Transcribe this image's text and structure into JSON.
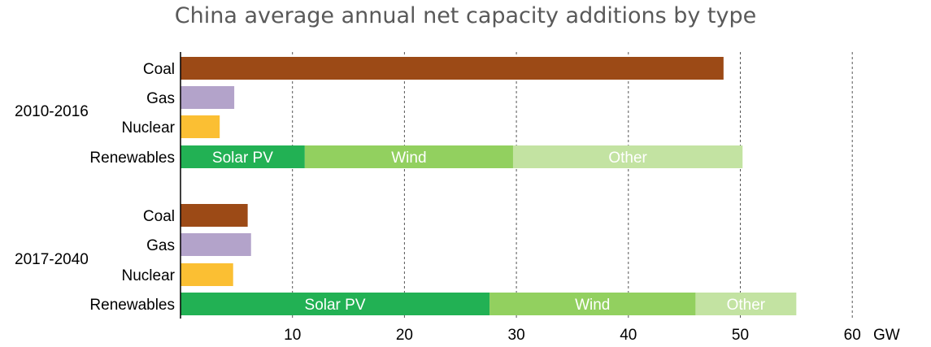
{
  "chart_data": {
    "type": "bar",
    "orientation": "horizontal",
    "stacked": true,
    "title": "China average annual net capacity additions by type",
    "unit": "GW",
    "xlim": [
      0,
      60
    ],
    "x_ticks": [
      10,
      20,
      30,
      40,
      50,
      60
    ],
    "grid": "vertical dashed",
    "groups": [
      {
        "label": "2010-2016",
        "bars": [
          {
            "label": "Coal",
            "segments": [
              {
                "name": "",
                "value": 48.5,
                "color": "#9C4A16"
              }
            ]
          },
          {
            "label": "Gas",
            "segments": [
              {
                "name": "",
                "value": 4.8,
                "color": "#B3A3CA"
              }
            ]
          },
          {
            "label": "Nuclear",
            "segments": [
              {
                "name": "",
                "value": 3.5,
                "color": "#FBBF33"
              }
            ]
          },
          {
            "label": "Renewables",
            "segments": [
              {
                "name": "Solar PV",
                "value": 11.1,
                "color": "#22B154"
              },
              {
                "name": "Wind",
                "value": 18.6,
                "color": "#92D05F"
              },
              {
                "name": "Other",
                "value": 20.5,
                "color": "#C3E3A2"
              }
            ]
          }
        ]
      },
      {
        "label": "2017-2040",
        "bars": [
          {
            "label": "Coal",
            "segments": [
              {
                "name": "",
                "value": 6.0,
                "color": "#9C4A16"
              }
            ]
          },
          {
            "label": "Gas",
            "segments": [
              {
                "name": "",
                "value": 6.3,
                "color": "#B3A3CA"
              }
            ]
          },
          {
            "label": "Nuclear",
            "segments": [
              {
                "name": "",
                "value": 4.7,
                "color": "#FBBF33"
              }
            ]
          },
          {
            "label": "Renewables",
            "segments": [
              {
                "name": "Solar PV",
                "value": 27.6,
                "color": "#22B154"
              },
              {
                "name": "Wind",
                "value": 18.4,
                "color": "#92D05F"
              },
              {
                "name": "Other",
                "value": 9.0,
                "color": "#C3E3A2"
              }
            ]
          }
        ]
      }
    ]
  }
}
